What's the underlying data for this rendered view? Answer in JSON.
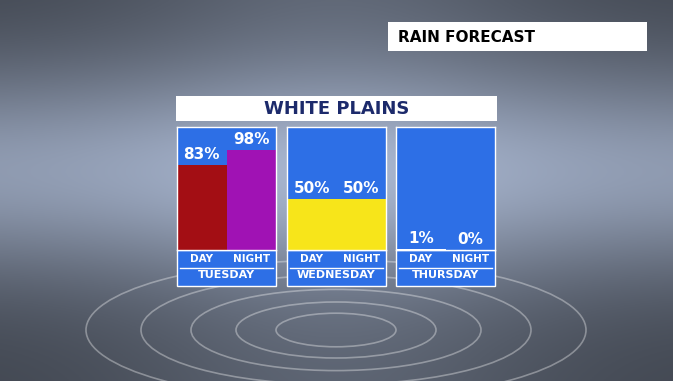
{
  "header": "RAIN FORECAST",
  "title": "WHITE PLAINS",
  "chart_data": [
    {
      "type": "bar",
      "xlabel": "TUESDAY",
      "categories": [
        "DAY",
        "NIGHT"
      ],
      "values": [
        83,
        98
      ],
      "value_labels": [
        "83%",
        "98%"
      ],
      "colors": [
        "#a30e14",
        "#a012b4"
      ],
      "ylim": [
        0,
        120
      ],
      "grid": false,
      "data_labels": true,
      "tick_labels": "x"
    },
    {
      "type": "bar",
      "xlabel": "WEDNESDAY",
      "categories": [
        "DAY",
        "NIGHT"
      ],
      "values": [
        50,
        50
      ],
      "value_labels": [
        "50%",
        "50%"
      ],
      "colors": [
        "#f7e51a",
        "#f7e51a"
      ],
      "ylim": [
        0,
        120
      ],
      "grid": false,
      "data_labels": true,
      "tick_labels": "x"
    },
    {
      "type": "bar",
      "xlabel": "THURSDAY",
      "categories": [
        "DAY",
        "NIGHT"
      ],
      "values": [
        1,
        0
      ],
      "value_labels": [
        "1%",
        "0%"
      ],
      "colors": [
        "#ffffff",
        "#ffffff"
      ],
      "ylim": [
        0,
        120
      ],
      "grid": false,
      "data_labels": true,
      "tick_labels": "x"
    }
  ]
}
